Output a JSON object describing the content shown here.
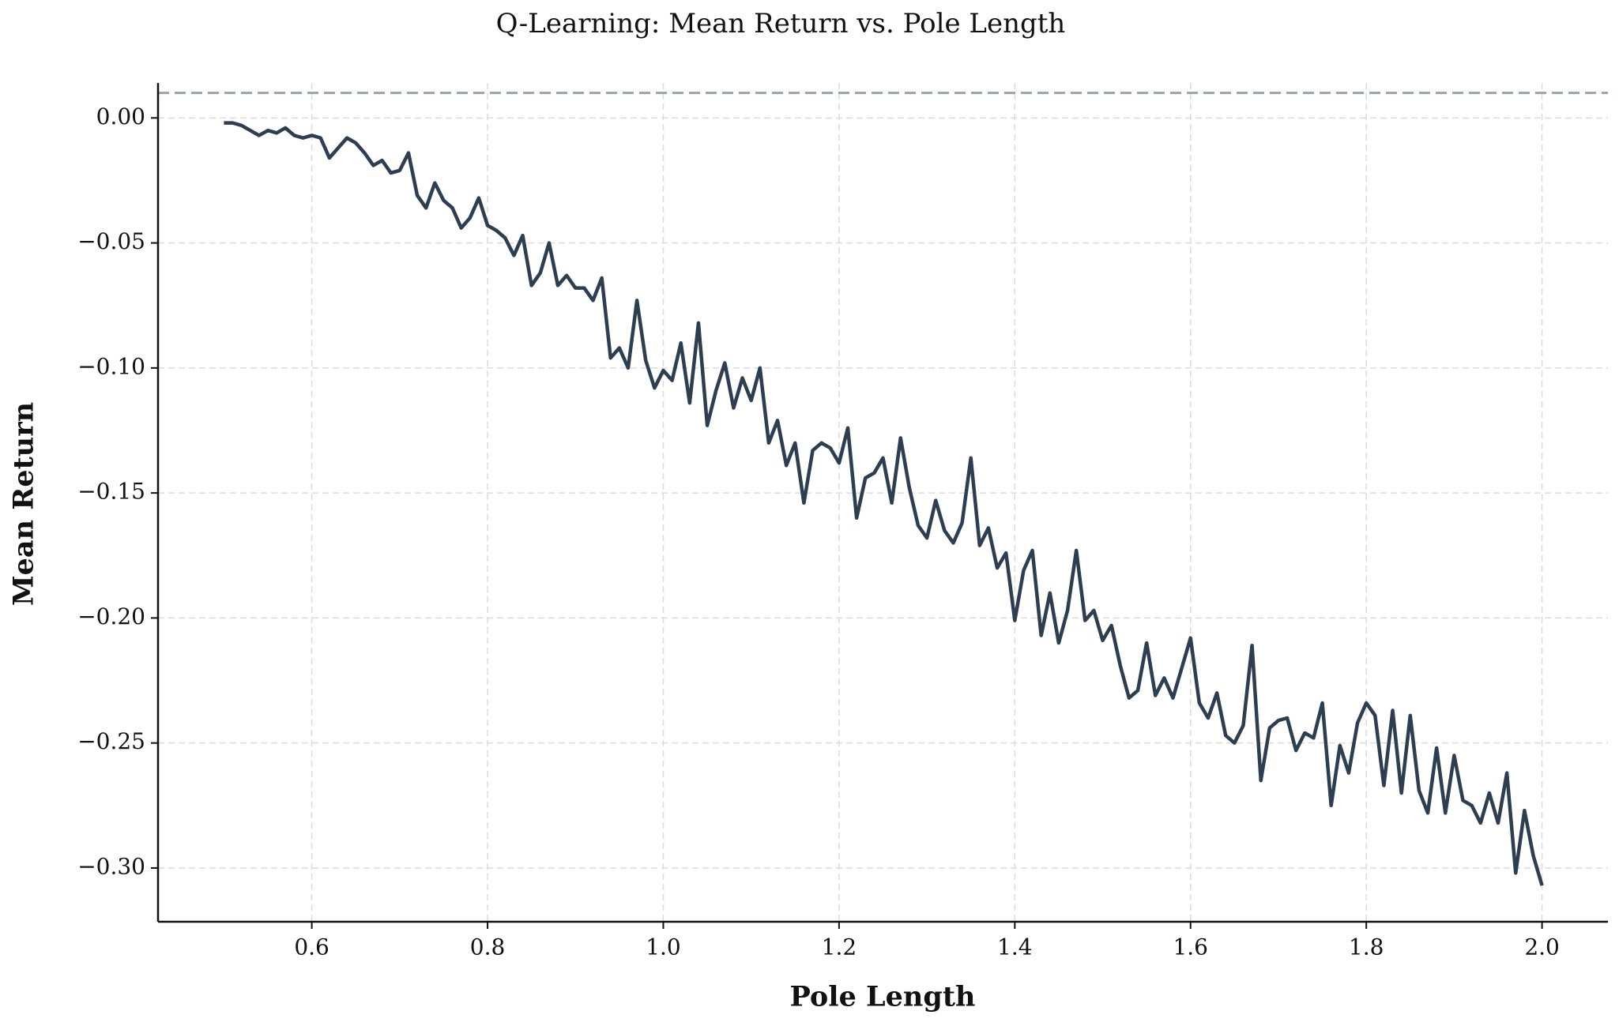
{
  "chart_data": {
    "type": "line",
    "title": "Q-Learning: Mean Return vs. Pole Length",
    "x_label": "Pole Length",
    "y_label": "Mean Return",
    "x": [
      0.5,
      0.51,
      0.52,
      0.53,
      0.54,
      0.55,
      0.56,
      0.57,
      0.58,
      0.59,
      0.6,
      0.61,
      0.62,
      0.63,
      0.64,
      0.65,
      0.66,
      0.67,
      0.68,
      0.69,
      0.7,
      0.71,
      0.72,
      0.73,
      0.74,
      0.75,
      0.76,
      0.77,
      0.78,
      0.79,
      0.8,
      0.81,
      0.82,
      0.83,
      0.84,
      0.85,
      0.86,
      0.87,
      0.88,
      0.89,
      0.9,
      0.91,
      0.92,
      0.93,
      0.94,
      0.95,
      0.96,
      0.97,
      0.98,
      0.99,
      1.0,
      1.01,
      1.02,
      1.03,
      1.04,
      1.05,
      1.06,
      1.07,
      1.08,
      1.09,
      1.1,
      1.11,
      1.12,
      1.13,
      1.14,
      1.15,
      1.16,
      1.17,
      1.18,
      1.19,
      1.2,
      1.21,
      1.22,
      1.23,
      1.24,
      1.25,
      1.26,
      1.27,
      1.28,
      1.29,
      1.3,
      1.31,
      1.32,
      1.33,
      1.34,
      1.35,
      1.36,
      1.37,
      1.38,
      1.39,
      1.4,
      1.41,
      1.42,
      1.43,
      1.44,
      1.45,
      1.46,
      1.47,
      1.48,
      1.49,
      1.5,
      1.51,
      1.52,
      1.53,
      1.54,
      1.55,
      1.56,
      1.57,
      1.58,
      1.59,
      1.6,
      1.61,
      1.62,
      1.63,
      1.64,
      1.65,
      1.66,
      1.67,
      1.68,
      1.69,
      1.7,
      1.71,
      1.72,
      1.73,
      1.74,
      1.75,
      1.76,
      1.77,
      1.78,
      1.79,
      1.8,
      1.81,
      1.82,
      1.83,
      1.84,
      1.85,
      1.86,
      1.87,
      1.88,
      1.89,
      1.9,
      1.91,
      1.92,
      1.93,
      1.94,
      1.95,
      1.96,
      1.97,
      1.98,
      1.99,
      2.0
    ],
    "series": [
      {
        "name": "Mean Return",
        "color": "#2c3e50",
        "values": [
          -0.002,
          -0.002,
          -0.003,
          -0.005,
          -0.007,
          -0.005,
          -0.006,
          -0.004,
          -0.007,
          -0.008,
          -0.007,
          -0.008,
          -0.016,
          -0.012,
          -0.008,
          -0.01,
          -0.014,
          -0.019,
          -0.017,
          -0.022,
          -0.021,
          -0.014,
          -0.031,
          -0.036,
          -0.026,
          -0.033,
          -0.036,
          -0.044,
          -0.04,
          -0.032,
          -0.043,
          -0.045,
          -0.048,
          -0.055,
          -0.047,
          -0.067,
          -0.062,
          -0.05,
          -0.067,
          -0.063,
          -0.068,
          -0.068,
          -0.073,
          -0.064,
          -0.096,
          -0.092,
          -0.1,
          -0.073,
          -0.097,
          -0.108,
          -0.101,
          -0.105,
          -0.09,
          -0.114,
          -0.082,
          -0.123,
          -0.109,
          -0.098,
          -0.116,
          -0.104,
          -0.113,
          -0.1,
          -0.13,
          -0.121,
          -0.139,
          -0.13,
          -0.154,
          -0.133,
          -0.13,
          -0.132,
          -0.138,
          -0.124,
          -0.16,
          -0.144,
          -0.142,
          -0.136,
          -0.154,
          -0.128,
          -0.148,
          -0.163,
          -0.168,
          -0.153,
          -0.165,
          -0.17,
          -0.162,
          -0.136,
          -0.171,
          -0.164,
          -0.18,
          -0.174,
          -0.201,
          -0.181,
          -0.173,
          -0.207,
          -0.19,
          -0.21,
          -0.197,
          -0.173,
          -0.201,
          -0.197,
          -0.209,
          -0.203,
          -0.219,
          -0.232,
          -0.229,
          -0.21,
          -0.231,
          -0.224,
          -0.232,
          -0.22,
          -0.208,
          -0.234,
          -0.24,
          -0.23,
          -0.247,
          -0.25,
          -0.243,
          -0.211,
          -0.265,
          -0.244,
          -0.241,
          -0.24,
          -0.253,
          -0.246,
          -0.248,
          -0.234,
          -0.275,
          -0.251,
          -0.262,
          -0.242,
          -0.234,
          -0.239,
          -0.267,
          -0.237,
          -0.27,
          -0.239,
          -0.269,
          -0.278,
          -0.252,
          -0.278,
          -0.255,
          -0.273,
          -0.275,
          -0.282,
          -0.27,
          -0.282,
          -0.262,
          -0.302,
          -0.277,
          -0.295,
          -0.307
        ]
      }
    ],
    "reference_line": {
      "value": 0.01,
      "color": "#95a5a6"
    },
    "xlim": [
      0.425,
      2.075
    ],
    "ylim": [
      -0.3215,
      0.014
    ],
    "xticks": [
      0.6,
      0.8,
      {
        "value": 1.0,
        "label": "1.0"
      },
      1.2,
      1.4,
      1.6,
      1.8,
      {
        "value": 2.0,
        "label": "2.0"
      }
    ],
    "yticks": [
      {
        "value": 0,
        "label": "0.00"
      },
      {
        "value": -0.05,
        "label": "−0.05"
      },
      {
        "value": -0.1,
        "label": "−0.10"
      },
      {
        "value": -0.15,
        "label": "−0.15"
      },
      {
        "value": -0.2,
        "label": "−0.20"
      },
      {
        "value": -0.25,
        "label": "−0.25"
      },
      {
        "value": -0.3,
        "label": "−0.30"
      }
    ],
    "grid": true
  }
}
